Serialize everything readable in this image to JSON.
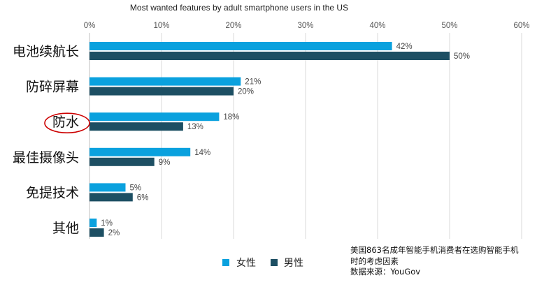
{
  "chart_data": {
    "type": "bar",
    "orientation": "horizontal",
    "title": "Most wanted features by adult smartphone users in the US",
    "categories": [
      "电池续航长",
      "防碎屏幕",
      "防水",
      "最佳摄像头",
      "免提技术",
      "其他"
    ],
    "series": [
      {
        "name": "女性",
        "color": "#0aa1de",
        "values": [
          42,
          21,
          18,
          14,
          5,
          1
        ]
      },
      {
        "name": "男性",
        "color": "#1d4f63",
        "values": [
          50,
          20,
          13,
          9,
          6,
          2
        ]
      }
    ],
    "xlim": [
      0,
      60
    ],
    "xticks": [
      0,
      10,
      20,
      30,
      40,
      50,
      60
    ],
    "tick_suffix": "%",
    "grid": true,
    "axis_position": "top",
    "legend_position": "bottom",
    "highlighted_category": "防水",
    "highlight_color": "#cc0000"
  },
  "note": {
    "line1": "美国863名成年智能手机消费者在选购智能手机",
    "line2": "时的考虑因素",
    "line3": "数据来源：YouGov"
  }
}
